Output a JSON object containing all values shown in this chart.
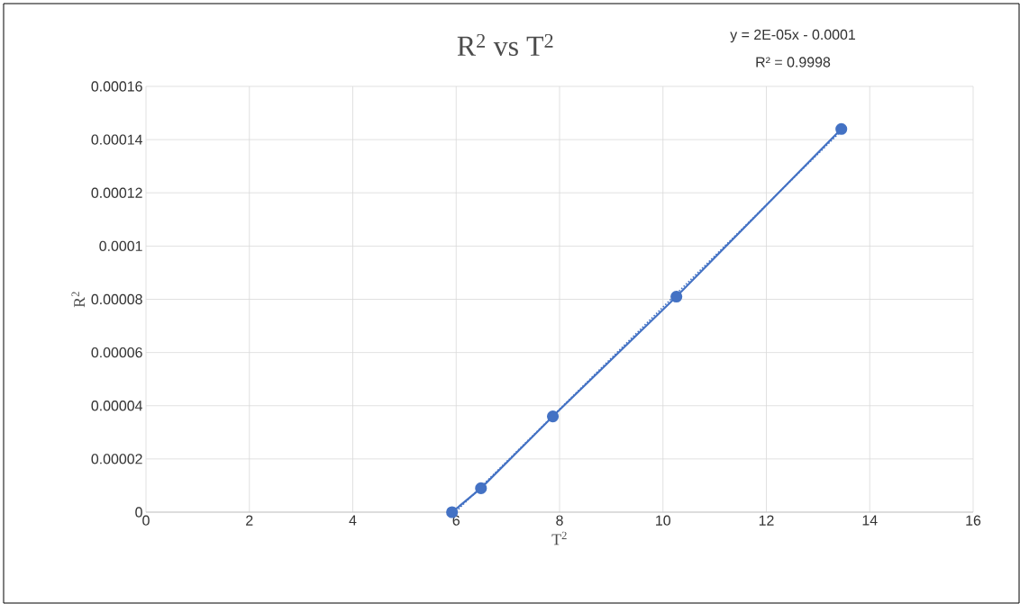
{
  "chart_data": {
    "type": "line",
    "title": "R$^{2}$ vs T$^{2}$",
    "xlabel": "T$^{2}$",
    "ylabel": "R$^{2}$",
    "annotations": [
      "y = 2E-05x - 0.0001",
      "R² = 0.9998"
    ],
    "x": [
      5.92,
      6.48,
      7.87,
      10.26,
      13.45
    ],
    "series": [
      {
        "color": "#4472c4",
        "values": [
          0,
          9e-06,
          3.6e-05,
          8.1e-05,
          0.000144
        ],
        "line_style": "solid"
      },
      {
        "type": "line",
        "color": "#4472c4",
        "x": [
          6.0,
          13.45
        ],
        "values": [
          3e-07,
          0.0001433
        ],
        "marker": "none",
        "line_style": "dotted"
      }
    ],
    "xlim": [
      0,
      16
    ],
    "ylim": [
      0,
      0.00016
    ],
    "xticks": [
      0,
      2,
      4,
      6,
      8,
      10,
      12,
      14,
      16
    ],
    "yticks": [
      {
        "value": 0,
        "label": "0"
      },
      {
        "value": 2e-05,
        "label": "0.00002"
      },
      {
        "value": 4e-05,
        "label": "0.00004"
      },
      {
        "value": 6e-05,
        "label": "0.00006"
      },
      {
        "value": 8e-05,
        "label": "0.00008"
      },
      {
        "value": 0.0001,
        "label": "0.0001"
      },
      {
        "value": 0.00012,
        "label": "0.00012"
      },
      {
        "value": 0.00014,
        "label": "0.00014"
      },
      {
        "value": 0.00016,
        "label": "0.00016"
      }
    ],
    "grid": true,
    "marker": "circle"
  }
}
